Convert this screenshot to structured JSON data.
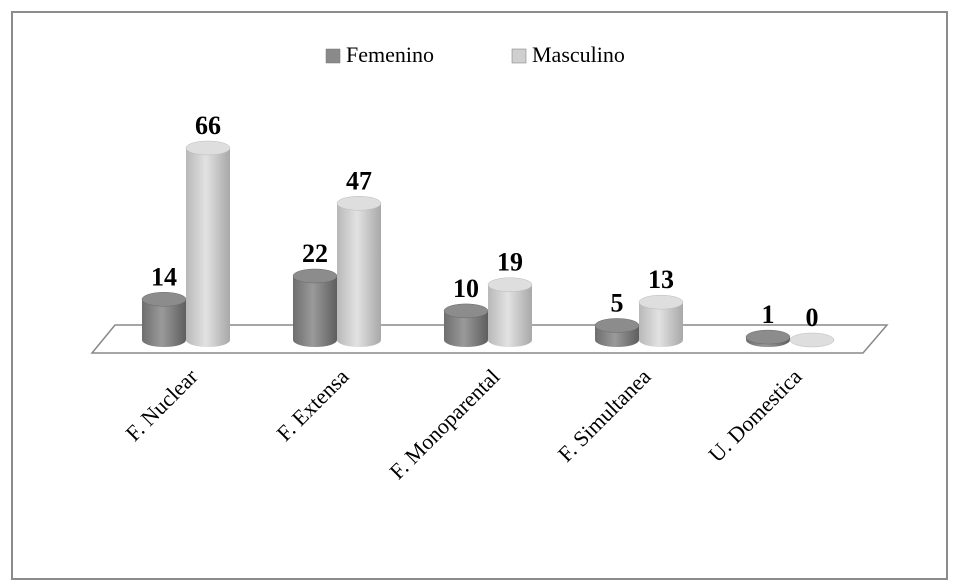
{
  "chart_data": {
    "type": "bar3d",
    "categories": [
      "F. Nuclear",
      "F. Extensa",
      "F. Monoparental",
      "F. Simultanea",
      "U. Domestica"
    ],
    "series": [
      {
        "name": "Femenino",
        "color": "#8a8a8a",
        "values": [
          14,
          22,
          10,
          5,
          1
        ]
      },
      {
        "name": "Masculino",
        "color": "#cfcfcf",
        "values": [
          66,
          47,
          19,
          13,
          0
        ]
      }
    ],
    "legend": "top"
  }
}
